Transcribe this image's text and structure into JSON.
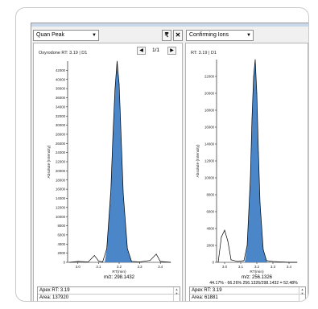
{
  "toolbar": {
    "left_select": "Quan Peak",
    "filter_glyph": "₹",
    "close_glyph": "✕",
    "right_select": "Confirming Ions"
  },
  "left_panel": {
    "title": "Oxyrodone  RT: 3.19 | D1",
    "pager": "1/1",
    "ylabel": "Absolute (Intensity)",
    "xlabel": "RT(min)",
    "mz": "m/z: 298.1432",
    "apex_rt": "Apex RT: 3.19",
    "area": "Area: 137920"
  },
  "right_panel": {
    "title": "RT: 3.19 | D1",
    "ylabel": "Absolute (Intensity)",
    "xlabel": "RT(min)",
    "mz": "m/z: 256.1326",
    "ratio": "44.17% - 66.26% 256.1326/298.1432 = 52.48%",
    "apex_rt": "Apex RT: 3.19",
    "area": "Area: 61881"
  },
  "colors": {
    "peak_fill": "#4a86c8",
    "peak_stroke": "#2a5d94"
  },
  "chart_data": [
    {
      "type": "line",
      "ylabel": "Absolute (Intensity)",
      "xlabel": "RT(min)",
      "xlim": [
        2.95,
        3.45
      ],
      "ylim": [
        0,
        44000
      ],
      "xticks": [
        "3.0",
        "3.1",
        "3.2",
        "3.3",
        "3.4"
      ],
      "yticks": [
        "0",
        "2000",
        "4000",
        "6000",
        "8000",
        "10000",
        "12000",
        "14000",
        "16000",
        "18000",
        "20000",
        "22000",
        "24000",
        "26000",
        "28000",
        "30000",
        "32000",
        "34000",
        "36000",
        "38000",
        "40000",
        "42000"
      ],
      "x": [
        2.96,
        3.0,
        3.05,
        3.08,
        3.1,
        3.12,
        3.14,
        3.16,
        3.17,
        3.18,
        3.19,
        3.2,
        3.21,
        3.22,
        3.24,
        3.26,
        3.3,
        3.35,
        3.38,
        3.4,
        3.45
      ],
      "y": [
        0,
        200,
        100,
        1500,
        300,
        100,
        3000,
        16000,
        28000,
        38000,
        44000,
        39000,
        27000,
        15000,
        3000,
        200,
        100,
        400,
        1800,
        200,
        0
      ],
      "shaded_range": [
        3.13,
        3.265
      ]
    },
    {
      "type": "line",
      "ylabel": "Absolute (Intensity)",
      "xlabel": "RT(min)",
      "xlim": [
        2.95,
        3.45
      ],
      "ylim": [
        0,
        24000
      ],
      "xticks": [
        "3.0",
        "3.1",
        "3.2",
        "3.3",
        "3.4"
      ],
      "yticks": [
        "0",
        "2000",
        "4000",
        "6000",
        "8000",
        "10000",
        "12000",
        "14000",
        "16000",
        "18000",
        "20000",
        "22000"
      ],
      "x": [
        2.96,
        2.98,
        3.0,
        3.02,
        3.04,
        3.08,
        3.12,
        3.14,
        3.16,
        3.17,
        3.18,
        3.19,
        3.2,
        3.21,
        3.22,
        3.24,
        3.26,
        3.3,
        3.4,
        3.45
      ],
      "y": [
        0,
        3000,
        3800,
        2500,
        300,
        100,
        200,
        2000,
        10000,
        17000,
        22000,
        24000,
        20000,
        13000,
        7000,
        1500,
        200,
        100,
        0,
        0
      ],
      "shaded_range": [
        3.125,
        3.265
      ]
    }
  ]
}
